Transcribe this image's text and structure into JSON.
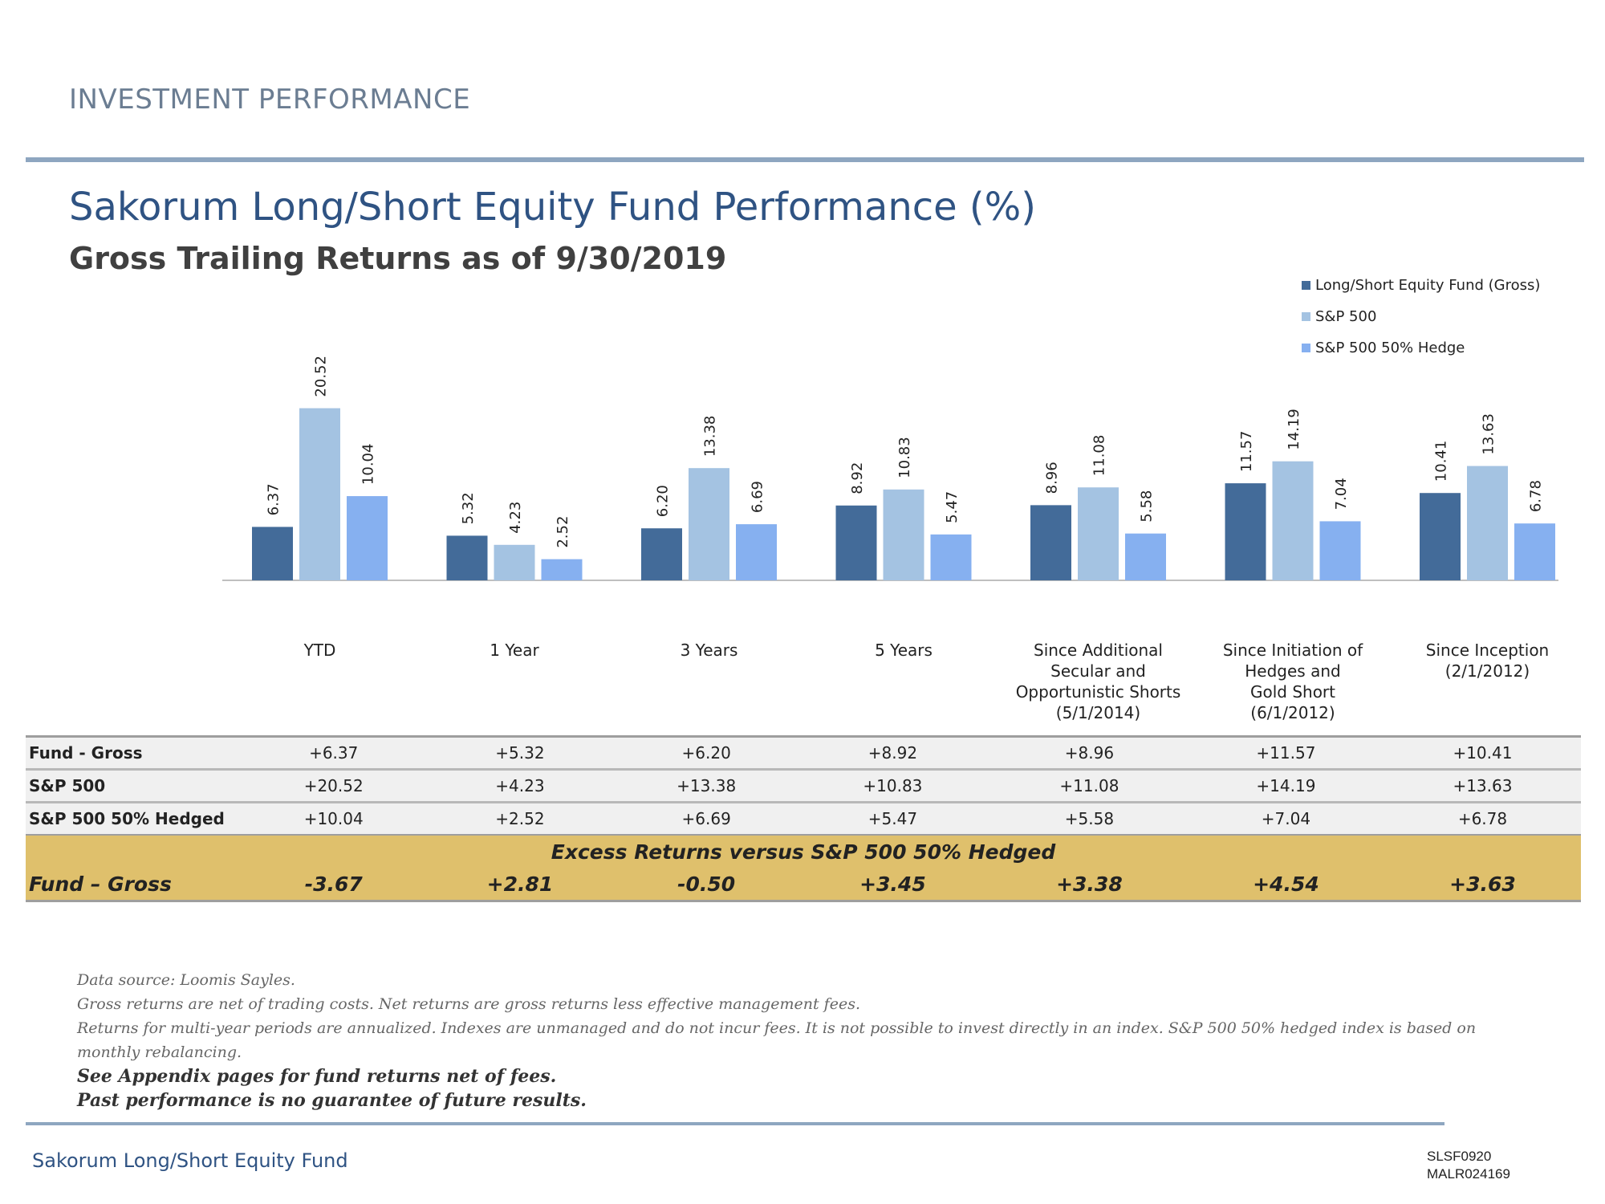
{
  "header": {
    "section_label": "INVESTMENT PERFORMANCE",
    "title": "Sakorum Long/Short Equity Fund Performance (%)",
    "subtitle": "Gross Trailing Returns as of 9/30/2019"
  },
  "colors": {
    "fund": "#436b99",
    "sp500": "#a4c3e2",
    "hedge": "#86b0f0",
    "excess_band": "#dfc06c",
    "accent_rule": "#8ea6c0",
    "title": "#2f5383"
  },
  "chart_data": {
    "type": "bar",
    "categories": [
      "YTD",
      "1 Year",
      "3 Years",
      "5 Years",
      "Since Additional Secular and Opportunistic Shorts (5/1/2014)",
      "Since Initiation of Hedges and Gold Short (6/1/2012)",
      "Since Inception (2/1/2012)"
    ],
    "category_lines": [
      [
        "YTD"
      ],
      [
        "1 Year"
      ],
      [
        "3 Years"
      ],
      [
        "5 Years"
      ],
      [
        "Since Additional",
        "Secular and",
        "Opportunistic Shorts",
        "(5/1/2014)"
      ],
      [
        "Since Initiation of",
        "Hedges and",
        "Gold Short",
        "(6/1/2012)"
      ],
      [
        "Since Inception",
        "(2/1/2012)"
      ]
    ],
    "series": [
      {
        "name": "Long/Short Equity Fund (Gross)",
        "color": "#436b99",
        "values": [
          6.37,
          5.32,
          6.2,
          8.92,
          8.96,
          11.57,
          10.41
        ],
        "labels": [
          "6.37",
          "5.32",
          "6.20",
          "8.92",
          "8.96",
          "11.57",
          "10.41"
        ]
      },
      {
        "name": "S&P 500",
        "color": "#a4c3e2",
        "values": [
          20.52,
          4.23,
          13.38,
          10.83,
          11.08,
          14.19,
          13.63
        ],
        "labels": [
          "20.52",
          "4.23",
          "13.38",
          "10.83",
          "11.08",
          "14.19",
          "13.63"
        ]
      },
      {
        "name": "S&P 500 50% Hedge",
        "color": "#86b0f0",
        "values": [
          10.04,
          2.52,
          6.69,
          5.47,
          5.58,
          7.04,
          6.78
        ],
        "labels": [
          "10.04",
          "2.52",
          "6.69",
          "5.47",
          "5.58",
          "7.04",
          "6.78"
        ]
      }
    ],
    "ylim": [
      0,
      21
    ],
    "grid": false,
    "legend": "top-right",
    "data_labels": "rotated-vertical"
  },
  "table": {
    "rows": [
      {
        "label": "Fund - Gross",
        "values": [
          "+6.37",
          "+5.32",
          "+6.20",
          "+8.92",
          "+8.96",
          "+11.57",
          "+10.41"
        ]
      },
      {
        "label": "S&P 500",
        "values": [
          "+20.52",
          "+4.23",
          "+13.38",
          "+10.83",
          "+11.08",
          "+14.19",
          "+13.63"
        ]
      },
      {
        "label": "S&P 500 50% Hedged",
        "values": [
          "+10.04",
          "+2.52",
          "+6.69",
          "+5.47",
          "+5.58",
          "+7.04",
          "+6.78"
        ]
      }
    ],
    "excess_heading": "Excess Returns versus S&P 500 50% Hedged",
    "excess_row": {
      "label": "Fund – Gross",
      "values": [
        "-3.67",
        "+2.81",
        "-0.50",
        "+3.45",
        "+3.38",
        "+4.54",
        "+3.63"
      ]
    }
  },
  "notes": {
    "line1": "Data source: Loomis Sayles.",
    "line2": "Gross returns are net of trading costs. Net returns are gross returns less effective management fees.",
    "line3": "Returns for multi-year periods are annualized. Indexes are unmanaged and do not incur fees. It is not possible to invest directly in an index.  S&P 500 50% hedged index is based on monthly rebalancing.",
    "bold1": "See Appendix pages for fund returns net of fees.",
    "bold2": "Past performance is no guarantee of future results."
  },
  "footer": {
    "left": "Sakorum Long/Short Equity Fund",
    "code1": "SLSF0920",
    "code2": "MALR024169"
  }
}
